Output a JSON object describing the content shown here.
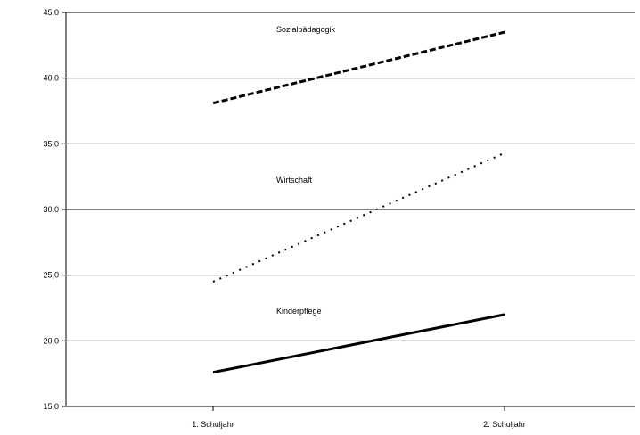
{
  "chart_data": {
    "type": "line",
    "categories": [
      "1. Schuljahr",
      "2. Schuljahr"
    ],
    "ylim": [
      15.0,
      45.0
    ],
    "yticks": [
      "15,0",
      "20,0",
      "25,0",
      "30,0",
      "35,0",
      "40,0",
      "45,0"
    ],
    "ytick_values": [
      15,
      20,
      25,
      30,
      35,
      40,
      45
    ],
    "grid": true,
    "legend": "inline labels",
    "series": [
      {
        "name": "Sozialpädagogik",
        "values": [
          38.1,
          43.5
        ],
        "style": "dashed",
        "color": "#000000"
      },
      {
        "name": "Wirtschaft",
        "values": [
          24.5,
          34.3
        ],
        "style": "dotted",
        "color": "#000000"
      },
      {
        "name": "Kinderpflege",
        "values": [
          17.6,
          22.0
        ],
        "style": "solid",
        "color": "#000000"
      }
    ]
  }
}
